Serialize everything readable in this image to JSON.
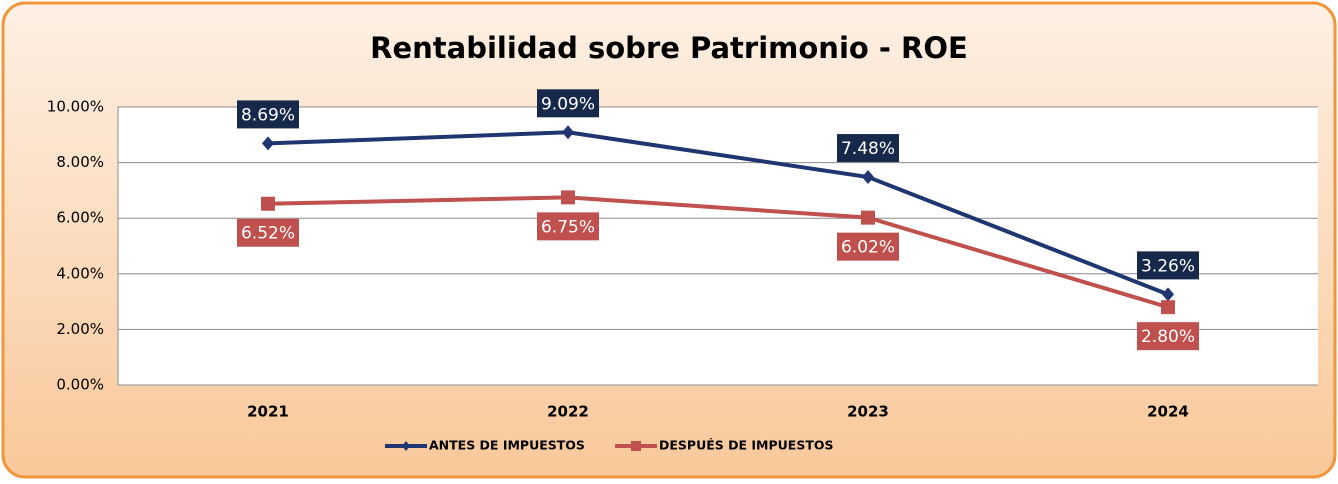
{
  "chart_data": {
    "type": "line",
    "title": "Rentabilidad sobre Patrimonio - ROE",
    "categories": [
      "2021",
      "2022",
      "2023",
      "2024"
    ],
    "series": [
      {
        "name": "ANTES DE IMPUESTOS",
        "color": "#1f3670",
        "marker": "diamond",
        "label_position": "above",
        "label_background": "#17294a",
        "values": [
          8.69,
          9.09,
          7.48,
          3.26
        ],
        "value_labels": [
          "8.69%",
          "9.09%",
          "7.48%",
          "3.26%"
        ]
      },
      {
        "name": "DESPUÉS DE IMPUESTOS",
        "color": "#c0504d",
        "marker": "square",
        "label_position": "below",
        "label_background": "#c0504d",
        "values": [
          6.52,
          6.75,
          6.02,
          2.8
        ],
        "value_labels": [
          "6.52%",
          "6.75%",
          "6.02%",
          "2.80%"
        ]
      }
    ],
    "ylim": [
      0,
      10
    ],
    "yticks": [
      {
        "value": 0,
        "label": "0.00%"
      },
      {
        "value": 2,
        "label": "2.00%"
      },
      {
        "value": 4,
        "label": "4.00%"
      },
      {
        "value": 6,
        "label": "6.00%"
      },
      {
        "value": 8,
        "label": "8.00%"
      },
      {
        "value": 10,
        "label": "10.00%"
      }
    ],
    "grid": true,
    "legend": "bottom"
  }
}
